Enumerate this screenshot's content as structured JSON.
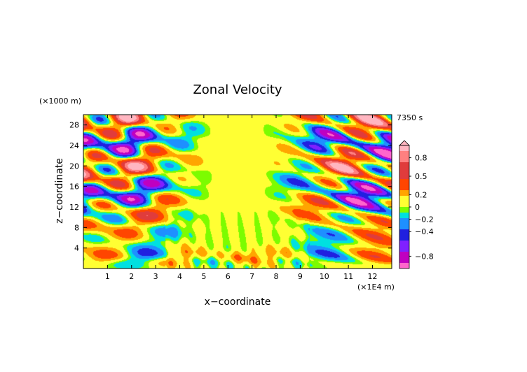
{
  "chart_data": {
    "type": "heatmap",
    "title": "Zonal Velocity",
    "xlabel": "x−coordinate",
    "ylabel": "z−coordinate",
    "x_unit": "(×1E4 m)",
    "y_unit": "(×1000 m)",
    "time_label": "7350 s",
    "xlim": [
      0,
      12.8
    ],
    "ylim": [
      0,
      30
    ],
    "x_ticks": [
      "1",
      "2",
      "3",
      "4",
      "5",
      "6",
      "7",
      "8",
      "9",
      "10",
      "11",
      "12"
    ],
    "x_tick_values": [
      1,
      2,
      3,
      4,
      5,
      6,
      7,
      8,
      9,
      10,
      11,
      12
    ],
    "y_ticks": [
      "4",
      "8",
      "12",
      "16",
      "20",
      "24",
      "28"
    ],
    "y_tick_values": [
      4,
      8,
      12,
      16,
      20,
      24,
      28
    ],
    "colorbar": {
      "labels": [
        "0.8",
        "0.5",
        "0.2",
        "0",
        "−0.2",
        "−0.4",
        "−0.8"
      ],
      "label_values": [
        0.8,
        0.5,
        0.2,
        0,
        -0.2,
        -0.4,
        -0.8
      ],
      "range": [
        -1.0,
        1.0
      ],
      "colors": [
        {
          "v": -1.0,
          "c": "#ff66cc"
        },
        {
          "v": -0.8,
          "c": "#c000c0"
        },
        {
          "v": -0.6,
          "c": "#8020ff"
        },
        {
          "v": -0.45,
          "c": "#2020e0"
        },
        {
          "v": -0.3,
          "c": "#1e90ff"
        },
        {
          "v": -0.15,
          "c": "#00e0e0"
        },
        {
          "v": -0.05,
          "c": "#7cfc00"
        },
        {
          "v": 0.0,
          "c": "#ffff33"
        },
        {
          "v": 0.08,
          "c": "#ffff33"
        },
        {
          "v": 0.2,
          "c": "#ffa500"
        },
        {
          "v": 0.4,
          "c": "#ff4500"
        },
        {
          "v": 0.6,
          "c": "#e03c3c"
        },
        {
          "v": 0.8,
          "c": "#ff8080"
        },
        {
          "v": 1.0,
          "c": "#ffb6c1"
        }
      ]
    }
  }
}
